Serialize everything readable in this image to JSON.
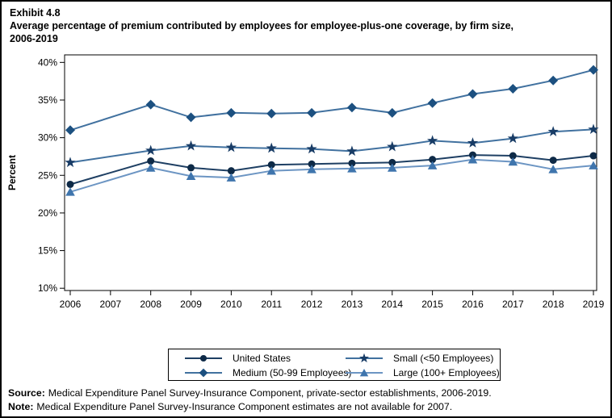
{
  "title": {
    "exhibit": "Exhibit 4.8",
    "line1": "Average percentage of premium contributed by employees for employee-plus-one coverage, by firm size,",
    "line2": "2006-2019"
  },
  "chart_data": {
    "type": "line",
    "x": [
      2006,
      2008,
      2009,
      2010,
      2011,
      2012,
      2013,
      2014,
      2015,
      2016,
      2017,
      2018,
      2019
    ],
    "x_axis_ticks": [
      2006,
      2007,
      2008,
      2009,
      2010,
      2011,
      2012,
      2013,
      2014,
      2015,
      2016,
      2017,
      2018,
      2019
    ],
    "ylabel": "Percent",
    "y_ticks": [
      40,
      35,
      30,
      25,
      20,
      15,
      10
    ],
    "y_tick_suffix": "%",
    "ylim": [
      9.7,
      41
    ],
    "grid": false,
    "legend_position": "bottom-center-box",
    "series": [
      {
        "name": "United States",
        "marker": "circle",
        "marker_color": "#0e2a47",
        "line_color": "#1e3f63",
        "values": [
          23.8,
          26.9,
          26.0,
          25.6,
          26.4,
          26.5,
          26.6,
          26.7,
          27.1,
          27.7,
          27.6,
          27.0,
          27.6
        ]
      },
      {
        "name": "Medium (50-99 Employees)",
        "marker": "diamond",
        "marker_color": "#1c5080",
        "line_color": "#41719f",
        "values": [
          31.0,
          34.4,
          32.7,
          33.3,
          33.2,
          33.3,
          34.0,
          33.3,
          34.6,
          35.8,
          36.5,
          37.6,
          39.0
        ]
      },
      {
        "name": "Small (<50 Employees)",
        "marker": "star",
        "marker_color": "#183c66",
        "line_color": "#41719f",
        "values": [
          26.7,
          28.3,
          28.9,
          28.7,
          28.6,
          28.5,
          28.2,
          28.8,
          29.6,
          29.3,
          29.9,
          30.8,
          31.1
        ]
      },
      {
        "name": "Large (100+ Employees)",
        "marker": "triangle",
        "marker_color": "#3f75ad",
        "line_color": "#6c95c3",
        "values": [
          22.8,
          26.0,
          24.9,
          24.7,
          25.6,
          25.8,
          25.9,
          26.0,
          26.3,
          27.1,
          26.8,
          25.8,
          26.3
        ]
      }
    ]
  },
  "legend": {
    "rows": [
      [
        0,
        2
      ],
      [
        1,
        3
      ]
    ]
  },
  "footer": {
    "source_label": "Source:",
    "source_text": "Medical Expenditure Panel Survey-Insurance Component, private-sector establishments, 2006-2019.",
    "note_label": "Note:",
    "note_text": "Medical Expenditure Panel Survey-Insurance Component estimates are not available for 2007."
  }
}
